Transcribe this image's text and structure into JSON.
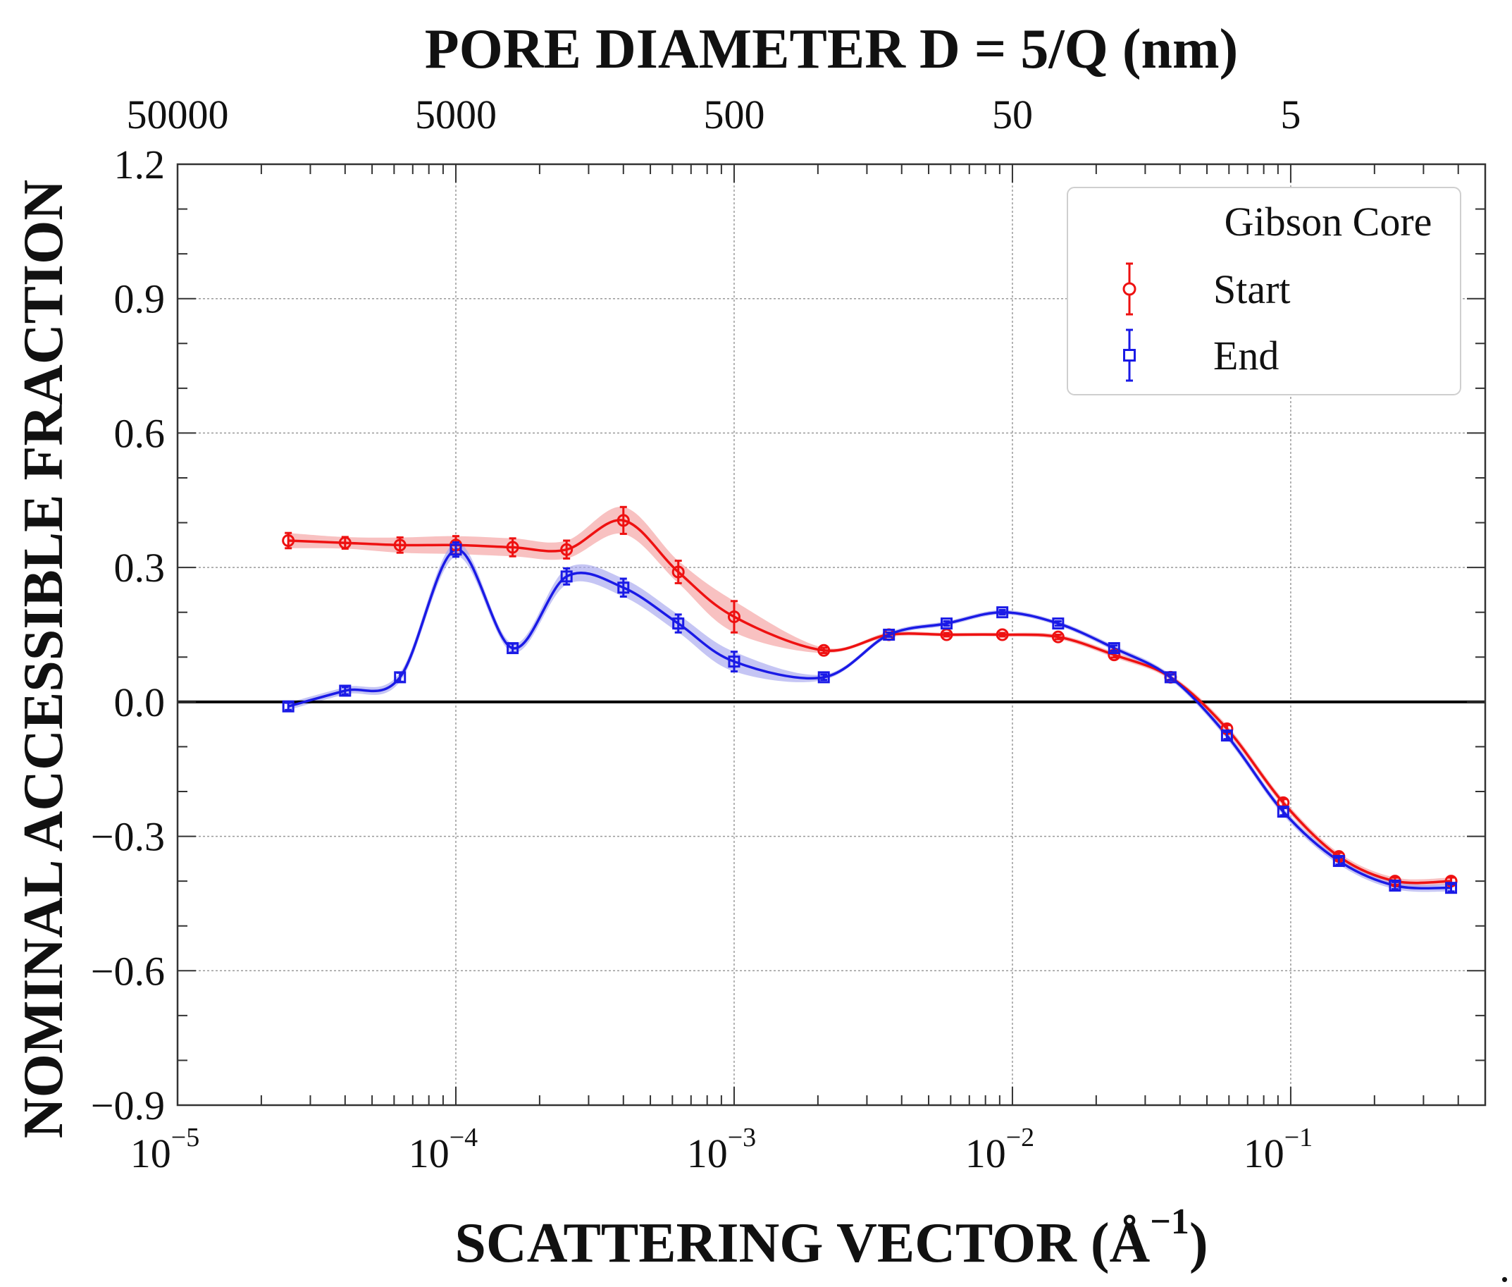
{
  "chart_data": {
    "type": "line",
    "title_top": "PORE DIAMETER D = 5/Q (nm)",
    "xlabel_main": "SCATTERING VECTOR (Å",
    "xlabel_sup": "−1",
    "xlabel_close": ")",
    "ylabel": "NOMINAL ACCESSIBLE FRACTION",
    "xscale": "log",
    "xlim": [
      1e-05,
      0.5
    ],
    "ylim": [
      -0.9,
      1.2
    ],
    "grid": true,
    "x_ticks": [
      {
        "value": 1e-05,
        "base": "10",
        "exp": "−5"
      },
      {
        "value": 0.0001,
        "base": "10",
        "exp": "−4"
      },
      {
        "value": 0.001,
        "base": "10",
        "exp": "−3"
      },
      {
        "value": 0.01,
        "base": "10",
        "exp": "−2"
      },
      {
        "value": 0.1,
        "base": "10",
        "exp": "−1"
      }
    ],
    "top_ticks": [
      {
        "value": 1e-05,
        "label": "50000"
      },
      {
        "value": 0.0001,
        "label": "5000"
      },
      {
        "value": 0.001,
        "label": "500"
      },
      {
        "value": 0.01,
        "label": "50"
      },
      {
        "value": 0.1,
        "label": "5"
      }
    ],
    "y_ticks": [
      {
        "value": 1.2,
        "label": "1.2"
      },
      {
        "value": 0.9,
        "label": "0.9"
      },
      {
        "value": 0.6,
        "label": "0.6"
      },
      {
        "value": 0.3,
        "label": "0.3"
      },
      {
        "value": 0.0,
        "label": "0.0"
      },
      {
        "value": -0.3,
        "label": "−0.3"
      },
      {
        "value": -0.6,
        "label": "−0.6"
      },
      {
        "value": -0.9,
        "label": "−0.9"
      }
    ],
    "legend": {
      "title": "Gibson Core",
      "position": "top-right"
    },
    "series": [
      {
        "name": "Start",
        "color": "#ee1111",
        "band_color": "#f5a0a0",
        "marker": "circle",
        "x": [
          2.5e-05,
          4e-05,
          6.3e-05,
          0.0001,
          0.00016,
          0.00025,
          0.0004,
          0.00063,
          0.001,
          0.0021,
          0.0036,
          0.0058,
          0.0092,
          0.0146,
          0.0232,
          0.037,
          0.059,
          0.094,
          0.149,
          0.237,
          0.377
        ],
        "y": [
          0.36,
          0.355,
          0.35,
          0.35,
          0.345,
          0.34,
          0.405,
          0.29,
          0.19,
          0.115,
          0.15,
          0.15,
          0.15,
          0.145,
          0.105,
          0.055,
          -0.06,
          -0.225,
          -0.345,
          -0.4,
          -0.4
        ],
        "err": [
          0.017,
          0.013,
          0.017,
          0.02,
          0.02,
          0.02,
          0.03,
          0.025,
          0.035,
          0.006,
          0.005,
          0.004,
          0.004,
          0.005,
          0.006,
          0.006,
          0.008,
          0.008,
          0.008,
          0.008,
          0.008
        ]
      },
      {
        "name": "End",
        "color": "#1a1ae6",
        "band_color": "#a6a6ee",
        "marker": "square",
        "x": [
          2.5e-05,
          4e-05,
          6.3e-05,
          0.0001,
          0.00016,
          0.00025,
          0.0004,
          0.00063,
          0.001,
          0.0021,
          0.0036,
          0.0058,
          0.0092,
          0.0146,
          0.0232,
          0.037,
          0.059,
          0.094,
          0.149,
          0.237,
          0.377
        ],
        "y": [
          -0.01,
          0.025,
          0.055,
          0.34,
          0.12,
          0.28,
          0.255,
          0.175,
          0.09,
          0.055,
          0.15,
          0.175,
          0.2,
          0.175,
          0.12,
          0.055,
          -0.075,
          -0.245,
          -0.355,
          -0.41,
          -0.415
        ],
        "err": [
          0.008,
          0.008,
          0.01,
          0.016,
          0.01,
          0.018,
          0.02,
          0.02,
          0.022,
          0.006,
          0.005,
          0.005,
          0.005,
          0.005,
          0.006,
          0.006,
          0.008,
          0.008,
          0.008,
          0.008,
          0.008
        ]
      }
    ]
  },
  "footnote": "."
}
